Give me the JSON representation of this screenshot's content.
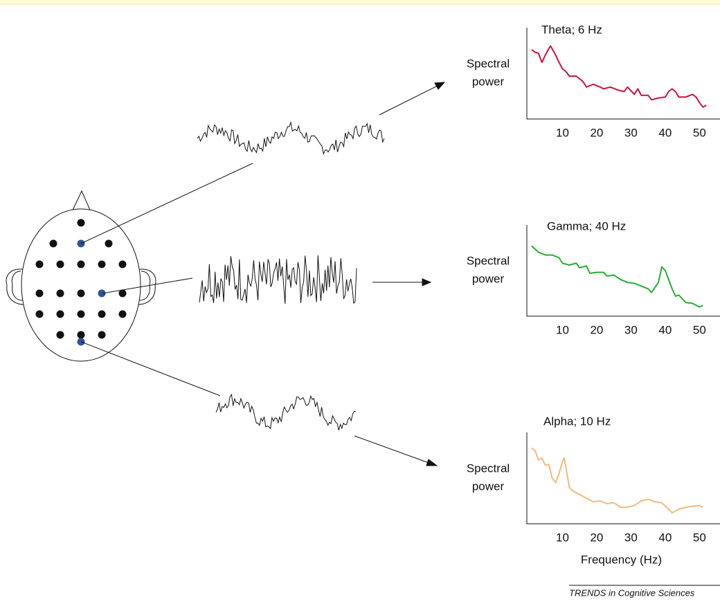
{
  "chart_data": [
    {
      "type": "line",
      "title": "Theta; 6 Hz",
      "ylabel": [
        "Spectral",
        "power"
      ],
      "color": "#d0103a",
      "x": [
        1,
        2,
        3,
        4,
        5,
        6,
        6.5,
        8,
        9,
        10,
        11,
        12,
        14,
        16,
        17,
        19,
        21,
        22,
        24,
        26,
        28,
        29,
        31,
        32,
        33,
        35,
        36,
        38,
        40,
        41,
        42,
        43,
        44,
        46,
        48,
        49,
        50,
        51,
        52
      ],
      "values": [
        76,
        73,
        72,
        62,
        70,
        77,
        80,
        70,
        62,
        55,
        52,
        47,
        47,
        41,
        35,
        38,
        35,
        33,
        35,
        32,
        30,
        35,
        27,
        33,
        26,
        26,
        21,
        23,
        24,
        30,
        33,
        30,
        24,
        24,
        27,
        24,
        18,
        13,
        15
      ],
      "xlim": [
        0,
        56
      ],
      "xticks": [
        10,
        20,
        30,
        40,
        50
      ],
      "ylim": [
        0,
        100
      ]
    },
    {
      "type": "line",
      "title": "Gamma; 40 Hz",
      "ylabel": [
        "Spectral",
        "power"
      ],
      "color": "#22b033",
      "x": [
        1,
        3,
        5,
        7,
        9,
        10,
        12,
        14,
        15,
        17,
        18,
        20,
        22,
        23,
        25,
        27,
        29,
        31,
        33,
        35,
        36,
        38,
        39,
        40,
        42,
        43,
        44,
        46,
        48,
        50,
        51
      ],
      "values": [
        77,
        70,
        67,
        67,
        64,
        58,
        56,
        58,
        53,
        55,
        47,
        48,
        48,
        44,
        45,
        40,
        37,
        36,
        33,
        30,
        26,
        37,
        54,
        50,
        30,
        22,
        23,
        15,
        14,
        10,
        12
      ],
      "xlim": [
        0,
        56
      ],
      "xticks": [
        10,
        20,
        30,
        40,
        50
      ],
      "ylim": [
        0,
        100
      ]
    },
    {
      "type": "line",
      "title": "Alpha; 10 Hz",
      "ylabel": [
        "Spectral",
        "power"
      ],
      "color": "#f5b87a",
      "xlabel": "Frequency (Hz)",
      "x": [
        1,
        2,
        3,
        4,
        5,
        6,
        7,
        8,
        9,
        10,
        10.5,
        11,
        12,
        13,
        15,
        17,
        19,
        21,
        23,
        25,
        27,
        29,
        31,
        33,
        35,
        37,
        39,
        41,
        42,
        44,
        46,
        48,
        50,
        51
      ],
      "values": [
        83,
        80,
        70,
        72,
        64,
        65,
        50,
        45,
        55,
        68,
        72,
        62,
        40,
        36,
        32,
        28,
        24,
        25,
        22,
        23,
        18,
        18,
        20,
        25,
        27,
        24,
        23,
        16,
        12,
        16,
        18,
        19,
        20,
        18
      ],
      "xlim": [
        0,
        56
      ],
      "xticks": [
        10,
        20,
        30,
        40,
        50
      ],
      "ylim": [
        0,
        100
      ]
    }
  ],
  "footer": "TRENDS in Cognitive Sciences"
}
